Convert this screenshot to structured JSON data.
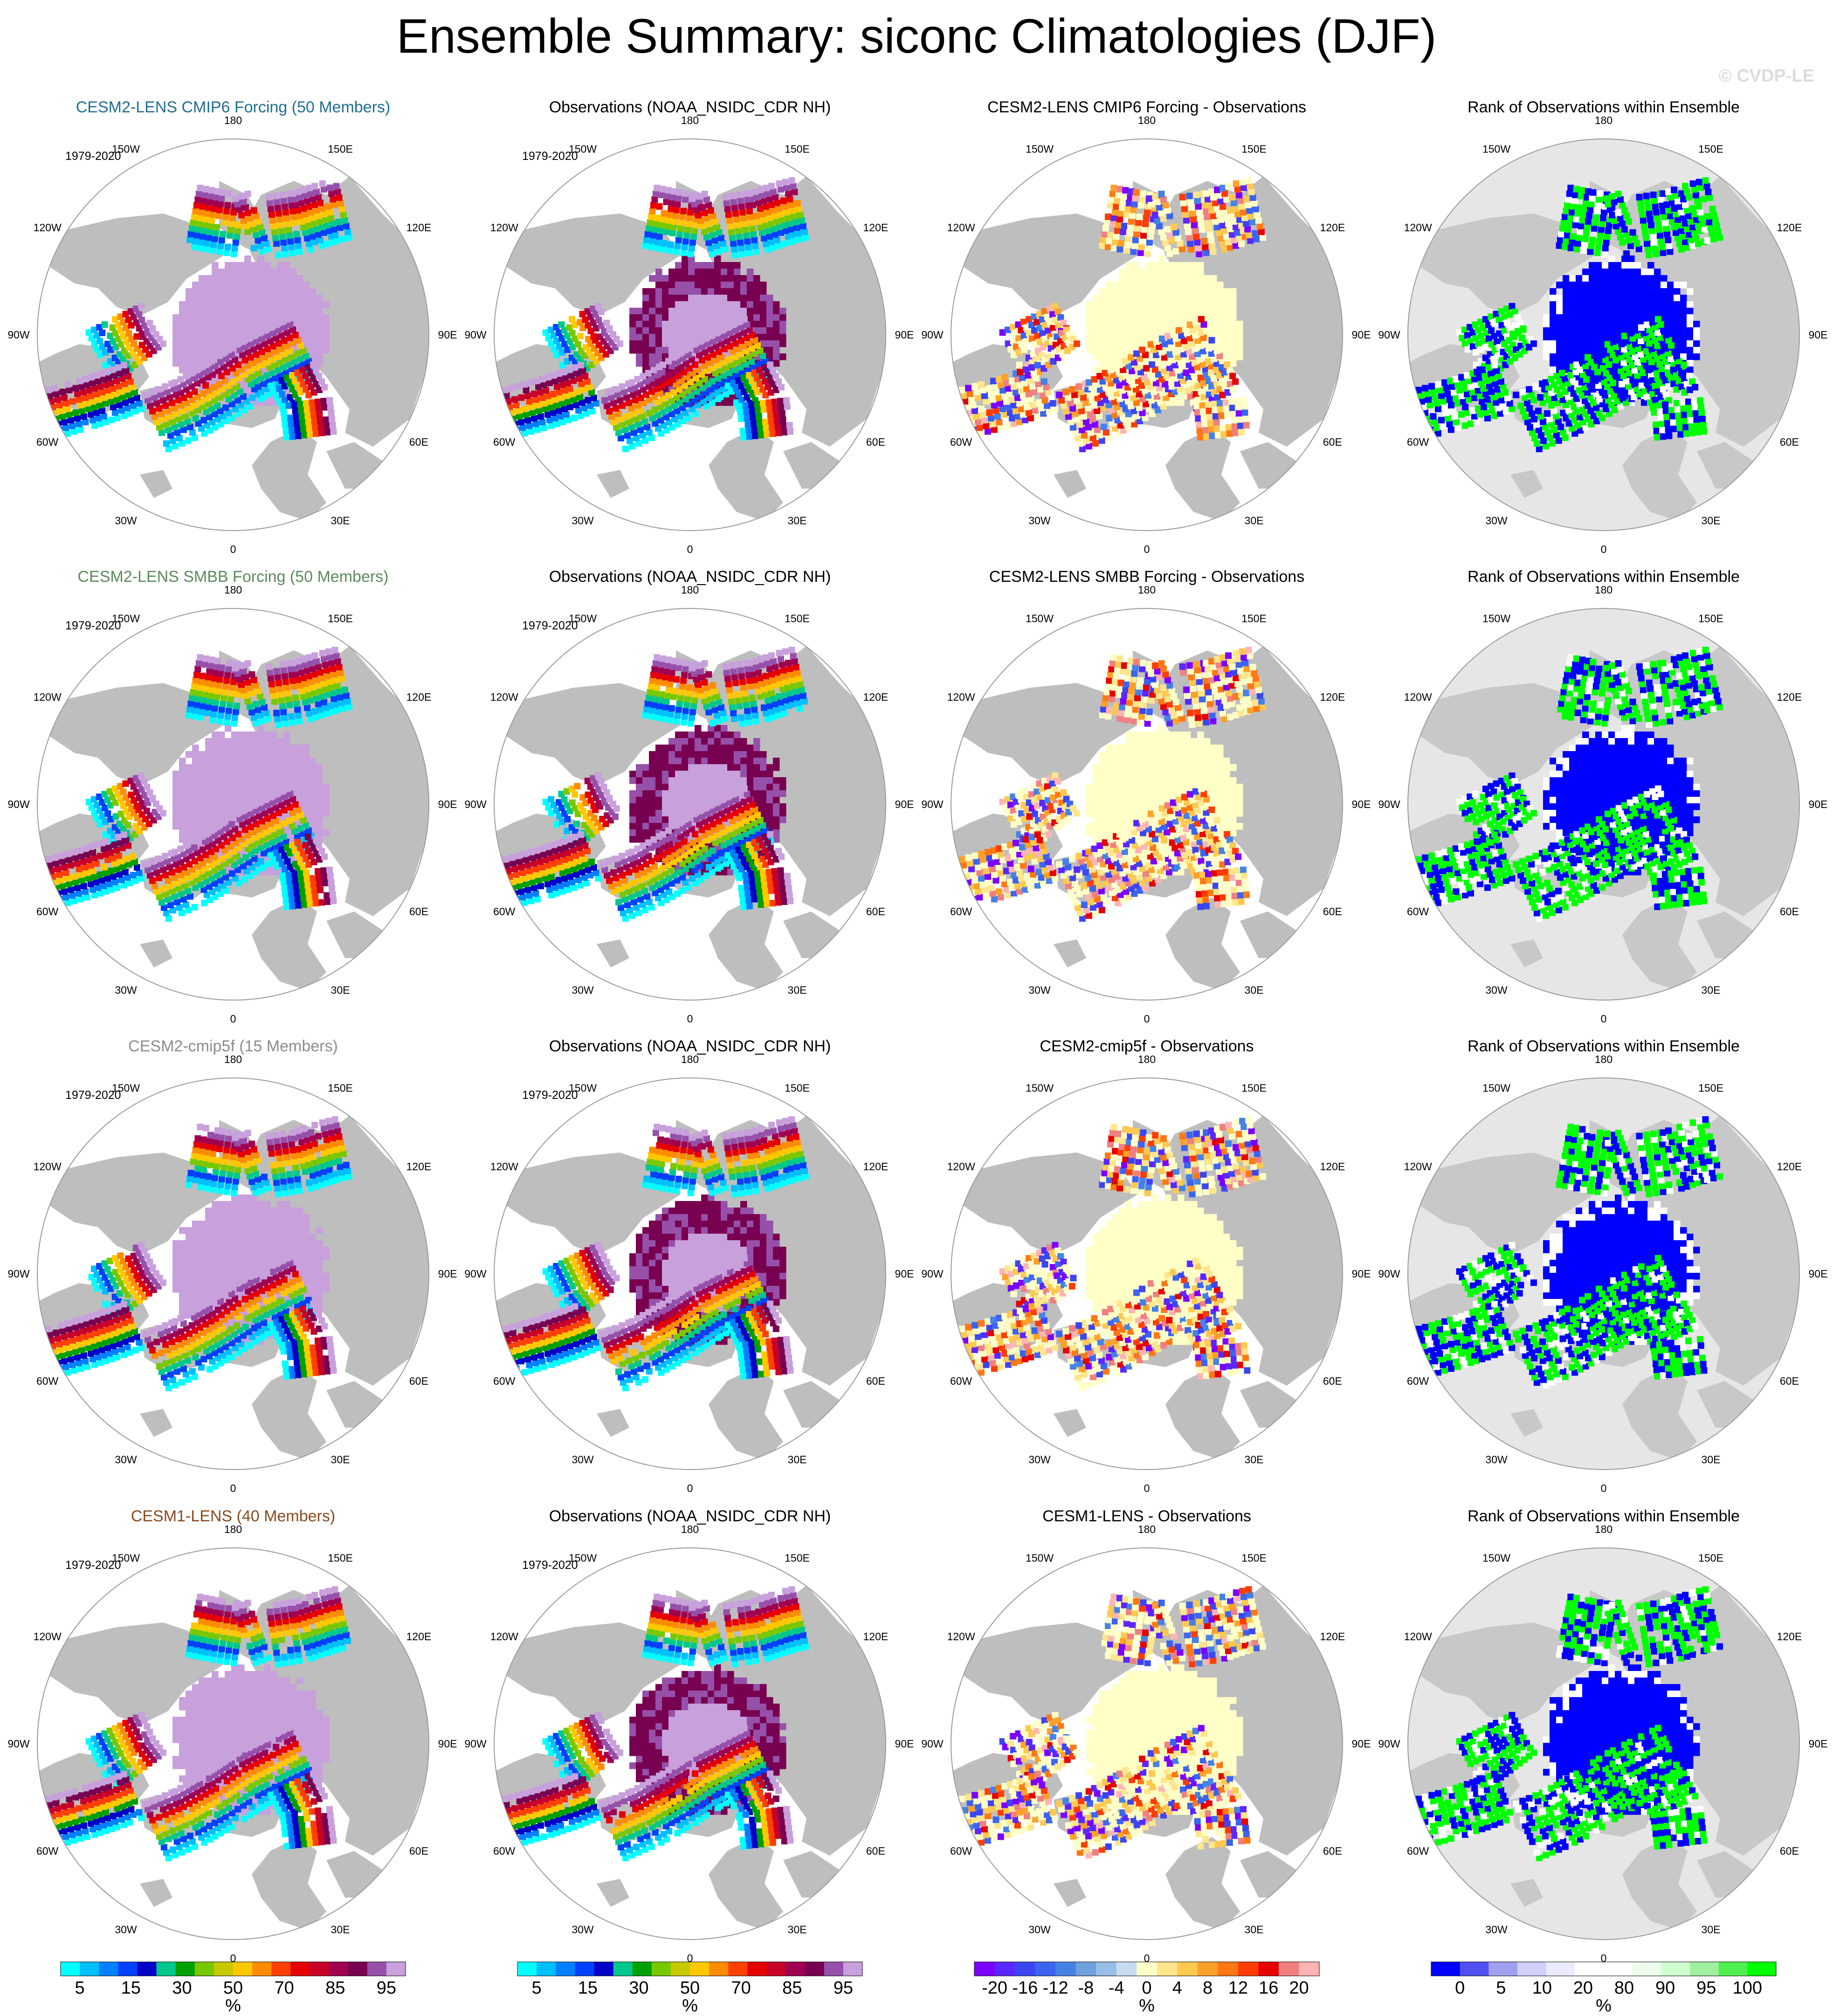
{
  "page_title": "Ensemble Summary: siconc Climatologies (DJF)",
  "credit": "© CVDP-LE",
  "period_label": "1979-2020",
  "longitude_labels": [
    "180",
    "150E",
    "120E",
    "90E",
    "60E",
    "30E",
    "0",
    "30W",
    "60W",
    "90W",
    "120W",
    "150W"
  ],
  "colors": {
    "land": "#bebebe",
    "ocean": "#ffffff",
    "rank_background": "#e6e6e6",
    "row_title_colors": [
      "#1f6e94",
      "#5b8a5b",
      "#8c8c8c",
      "#8a4a1e"
    ]
  },
  "rows": [
    {
      "ensemble_title": "CESM2-LENS CMIP6 Forcing (50 Members)",
      "observations_title": "Observations (NOAA_NSIDC_CDR NH)",
      "difference_title": "CESM2-LENS CMIP6 Forcing - Observations",
      "rank_title": "Rank of Observations within Ensemble"
    },
    {
      "ensemble_title": "CESM2-LENS SMBB Forcing (50 Members)",
      "observations_title": "Observations (NOAA_NSIDC_CDR NH)",
      "difference_title": "CESM2-LENS SMBB Forcing - Observations",
      "rank_title": "Rank of Observations within Ensemble"
    },
    {
      "ensemble_title": "CESM2-cmip5f (15 Members)",
      "observations_title": "Observations (NOAA_NSIDC_CDR NH)",
      "difference_title": "CESM2-cmip5f - Observations",
      "rank_title": "Rank of Observations within Ensemble"
    },
    {
      "ensemble_title": "CESM1-LENS (40 Members)",
      "observations_title": "Observations (NOAA_NSIDC_CDR NH)",
      "difference_title": "CESM1-LENS - Observations",
      "rank_title": "Rank of Observations within Ensemble"
    }
  ],
  "colorbars": [
    {
      "unit": "%",
      "colors": [
        "#00ffff",
        "#00bfff",
        "#0080ff",
        "#0040ff",
        "#0000c8",
        "#00c88c",
        "#00a000",
        "#78c800",
        "#c8c800",
        "#ffc800",
        "#ff8c00",
        "#ff4000",
        "#e60000",
        "#c80028",
        "#a00050",
        "#780050",
        "#9650aa",
        "#c8a0dc"
      ],
      "labels": [
        "5",
        "15",
        "30",
        "50",
        "70",
        "85",
        "95"
      ]
    },
    {
      "unit": "%",
      "colors": [
        "#00ffff",
        "#00bfff",
        "#0080ff",
        "#0040ff",
        "#0000c8",
        "#00c88c",
        "#00a000",
        "#78c800",
        "#c8c800",
        "#ffc800",
        "#ff8c00",
        "#ff4000",
        "#e60000",
        "#c80028",
        "#a00050",
        "#780050",
        "#9650aa",
        "#c8a0dc"
      ],
      "labels": [
        "5",
        "15",
        "30",
        "50",
        "70",
        "85",
        "95"
      ]
    },
    {
      "unit": "%",
      "colors": [
        "#7b00ff",
        "#5a28ff",
        "#3c46f0",
        "#3c64f0",
        "#4682e6",
        "#6ea0dc",
        "#96bee6",
        "#c8dcf0",
        "#ffffc8",
        "#ffe68c",
        "#ffc850",
        "#ffa028",
        "#ff7814",
        "#ff3c00",
        "#e60000",
        "#f08080",
        "#ffb4b4"
      ],
      "labels": [
        "-20",
        "-16",
        "-12",
        "-8",
        "-4",
        "0",
        "4",
        "8",
        "12",
        "16",
        "20"
      ]
    },
    {
      "unit": "%",
      "colors": [
        "#0000ff",
        "#5050f0",
        "#a0a0f0",
        "#d0d0f8",
        "#ebebff",
        "#ffffff",
        "#ffffff",
        "#ebffeb",
        "#d0ffd0",
        "#a0f0a0",
        "#50f050",
        "#00ff00"
      ],
      "labels": [
        "0",
        "5",
        "10",
        "20",
        "80",
        "90",
        "95",
        "100"
      ]
    }
  ]
}
